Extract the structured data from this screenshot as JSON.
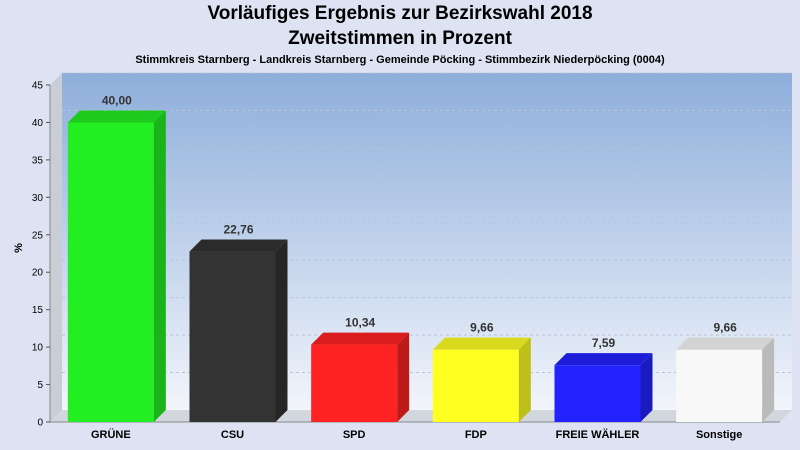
{
  "chart_data": {
    "type": "bar",
    "title": "Vorläufiges Ergebnis zur Bezirkswahl 2018",
    "title2": "Zweitstimmen in Prozent",
    "subtitle": "Stimmkreis Starnberg - Landkreis Starnberg - Gemeinde Pöcking - Stimmbezirk Niederpöcking (0004)",
    "ylabel": "%",
    "ylim": [
      0,
      45
    ],
    "yticks": [
      0,
      5,
      10,
      15,
      20,
      25,
      30,
      35,
      40,
      45
    ],
    "grid": true,
    "categories": [
      "GRÜNE",
      "CSU",
      "SPD",
      "FDP",
      "FREIE WÄHLER",
      "Sonstige"
    ],
    "values": [
      40.0,
      22.76,
      10.34,
      9.66,
      7.59,
      9.66
    ],
    "value_labels": [
      "40,00",
      "22,76",
      "10,34",
      "9,66",
      "7,59",
      "9,66"
    ],
    "colors": [
      "#22ee22",
      "#333333",
      "#ff2222",
      "#ffff22",
      "#2222ff",
      "#f8f8f8"
    ]
  }
}
